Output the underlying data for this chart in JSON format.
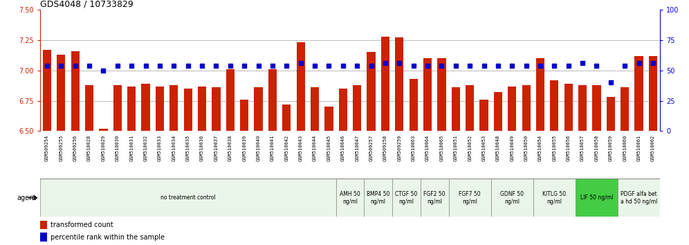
{
  "title": "GDS4048 / 10733829",
  "samples": [
    "GSM509254",
    "GSM509255",
    "GSM509256",
    "GSM510028",
    "GSM510029",
    "GSM510030",
    "GSM510031",
    "GSM510032",
    "GSM510033",
    "GSM510034",
    "GSM510035",
    "GSM510036",
    "GSM510037",
    "GSM510038",
    "GSM510039",
    "GSM510040",
    "GSM510041",
    "GSM510042",
    "GSM510043",
    "GSM510044",
    "GSM510045",
    "GSM510046",
    "GSM510047",
    "GSM509257",
    "GSM509258",
    "GSM509259",
    "GSM510063",
    "GSM510064",
    "GSM510065",
    "GSM510051",
    "GSM510052",
    "GSM510053",
    "GSM510048",
    "GSM510049",
    "GSM510050",
    "GSM510054",
    "GSM510055",
    "GSM510056",
    "GSM510057",
    "GSM510058",
    "GSM510059",
    "GSM510060",
    "GSM510061",
    "GSM510062"
  ],
  "bar_values": [
    7.17,
    7.13,
    7.16,
    6.88,
    6.52,
    6.88,
    6.87,
    6.89,
    6.87,
    6.88,
    6.85,
    6.87,
    6.86,
    7.01,
    6.76,
    6.86,
    7.01,
    6.72,
    7.23,
    6.86,
    6.7,
    6.85,
    6.88,
    7.15,
    7.28,
    7.27,
    6.93,
    7.1,
    7.1,
    6.86,
    6.88,
    6.76,
    6.82,
    6.87,
    6.88,
    7.1,
    6.92,
    6.89,
    6.88,
    6.88,
    6.78,
    6.86,
    7.12,
    7.12
  ],
  "percentile_values": [
    54,
    54,
    54,
    54,
    50,
    54,
    54,
    54,
    54,
    54,
    54,
    54,
    54,
    54,
    54,
    54,
    54,
    54,
    56,
    54,
    54,
    54,
    54,
    54,
    56,
    56,
    54,
    54,
    54,
    54,
    54,
    54,
    54,
    54,
    54,
    54,
    54,
    54,
    56,
    54,
    40,
    54,
    56,
    56
  ],
  "ylim_left": [
    6.5,
    7.5
  ],
  "ylim_right": [
    0,
    100
  ],
  "yticks_left": [
    6.5,
    6.75,
    7.0,
    7.25,
    7.5
  ],
  "yticks_right": [
    0,
    25,
    50,
    75,
    100
  ],
  "bar_color": "#cc2200",
  "dot_color": "#0000cc",
  "bg_color": "#ffffff",
  "plot_bg_color": "#ffffff",
  "tick_label_bg": "#d8d8d8",
  "left_axis_color": "#cc2200",
  "right_axis_color": "#0000cc",
  "agent_groups": [
    {
      "label": "no treatment control",
      "start": 0,
      "end": 21,
      "color": "#e8f5e8"
    },
    {
      "label": "AMH 50\nng/ml",
      "start": 21,
      "end": 23,
      "color": "#e8f5e8"
    },
    {
      "label": "BMP4 50\nng/ml",
      "start": 23,
      "end": 25,
      "color": "#e8f5e8"
    },
    {
      "label": "CTGF 50\nng/ml",
      "start": 25,
      "end": 27,
      "color": "#e8f5e8"
    },
    {
      "label": "FGF2 50\nng/ml",
      "start": 27,
      "end": 29,
      "color": "#e8f5e8"
    },
    {
      "label": "FGF7 50\nng/ml",
      "start": 29,
      "end": 32,
      "color": "#e8f5e8"
    },
    {
      "label": "GDNF 50\nng/ml",
      "start": 32,
      "end": 35,
      "color": "#e8f5e8"
    },
    {
      "label": "KITLG 50\nng/ml",
      "start": 35,
      "end": 38,
      "color": "#e8f5e8"
    },
    {
      "label": "LIF 50 ng/ml",
      "start": 38,
      "end": 41,
      "color": "#44cc44"
    },
    {
      "label": "PDGF alfa bet\na hd 50 ng/ml",
      "start": 41,
      "end": 44,
      "color": "#e8f5e8"
    }
  ]
}
